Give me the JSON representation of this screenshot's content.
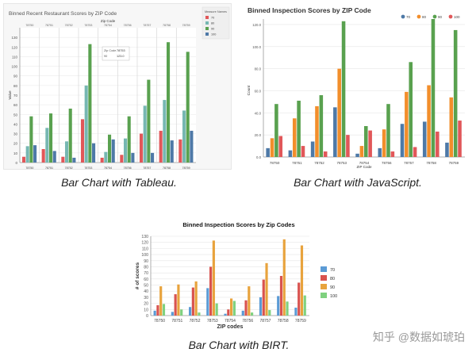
{
  "captions": {
    "tableau": "Bar Chart with Tableau.",
    "javascript": "Bar Chart with JavaScript.",
    "birt": "Bar Chart with BIRT."
  },
  "watermark": "知乎 @数据如琥珀",
  "chart_data": [
    {
      "type": "bar",
      "title": "Binned Recent Restaurant Scores by ZIP Code",
      "xlabel": "Zip Code",
      "ylabel": "Value",
      "legend_title": "Measure Names",
      "legend_placement": "right",
      "grid": true,
      "ylim": [
        0,
        140
      ],
      "yticks": [
        0,
        10,
        20,
        30,
        40,
        50,
        60,
        70,
        80,
        90,
        100,
        110,
        120,
        130
      ],
      "categories": [
        "78750",
        "78751",
        "78752",
        "78753",
        "78754",
        "78756",
        "78757",
        "78758",
        "78759"
      ],
      "tooltip": {
        "zip_label": "Zip Code",
        "zip_value": "78753",
        "measure_label": "90",
        "measure_value": "123.0"
      },
      "colors": [
        "#e15759",
        "#76b7b2",
        "#59a14f",
        "#4e79a7"
      ],
      "series": [
        {
          "name": "70",
          "values": [
            6,
            14,
            6,
            45,
            5,
            8,
            30,
            33,
            24
          ]
        },
        {
          "name": "80",
          "values": [
            17,
            36,
            22,
            80,
            11,
            25,
            59,
            65,
            54
          ]
        },
        {
          "name": "90",
          "values": [
            48,
            51,
            56,
            123,
            29,
            48,
            86,
            125,
            115
          ]
        },
        {
          "name": "100",
          "values": [
            18,
            12,
            5,
            20,
            24,
            10,
            10,
            23,
            33
          ]
        }
      ]
    },
    {
      "type": "bar",
      "title": "Binned Inspection Scores by ZIP Code",
      "xlabel": "ZIP Code",
      "ylabel": "Count",
      "legend_placement": "top-right",
      "grid": true,
      "ylim": [
        0,
        125
      ],
      "yticks": [
        0,
        20,
        40,
        60,
        80,
        100,
        120
      ],
      "ytick_labels": [
        "0.0",
        "20.0",
        "40.0",
        "60.0",
        "80.0",
        "100.0",
        "120.0"
      ],
      "categories": [
        "78750",
        "78751",
        "78752",
        "78753",
        "78754",
        "78756",
        "78757",
        "78758",
        "78759"
      ],
      "colors": [
        "#4e79a7",
        "#f28e2b",
        "#59a14f",
        "#e15759"
      ],
      "series": [
        {
          "name": "70",
          "values": [
            8,
            6,
            14,
            45,
            3,
            8,
            30,
            32,
            13
          ]
        },
        {
          "name": "80",
          "values": [
            17,
            35,
            46,
            80,
            10,
            25,
            59,
            65,
            54
          ]
        },
        {
          "name": "90",
          "values": [
            48,
            51,
            56,
            123,
            28,
            48,
            86,
            125,
            115
          ]
        },
        {
          "name": "100",
          "values": [
            19,
            10,
            5,
            20,
            24,
            5,
            9,
            23,
            33
          ]
        }
      ]
    },
    {
      "type": "bar",
      "title": "Binned Inspection Scores by Zip Codes",
      "xlabel": "ZIP codes",
      "ylabel": "# of scores",
      "legend_placement": "right",
      "grid": true,
      "ylim": [
        0,
        130
      ],
      "yticks": [
        0,
        10,
        20,
        30,
        40,
        50,
        60,
        70,
        80,
        90,
        100,
        110,
        120,
        130
      ],
      "categories": [
        "78750",
        "78751",
        "78752",
        "78753",
        "78754",
        "78756",
        "78757",
        "78758",
        "78759"
      ],
      "colors": [
        "#5b9bd5",
        "#d9534f",
        "#e8a33d",
        "#7fd17f"
      ],
      "series": [
        {
          "name": "70",
          "values": [
            8,
            6,
            14,
            45,
            3,
            8,
            30,
            32,
            13
          ]
        },
        {
          "name": "80",
          "values": [
            17,
            35,
            46,
            80,
            10,
            25,
            59,
            65,
            54
          ]
        },
        {
          "name": "90",
          "values": [
            48,
            51,
            56,
            123,
            28,
            48,
            86,
            125,
            115
          ]
        },
        {
          "name": "100",
          "values": [
            19,
            10,
            5,
            20,
            24,
            5,
            9,
            23,
            33
          ]
        }
      ]
    }
  ]
}
